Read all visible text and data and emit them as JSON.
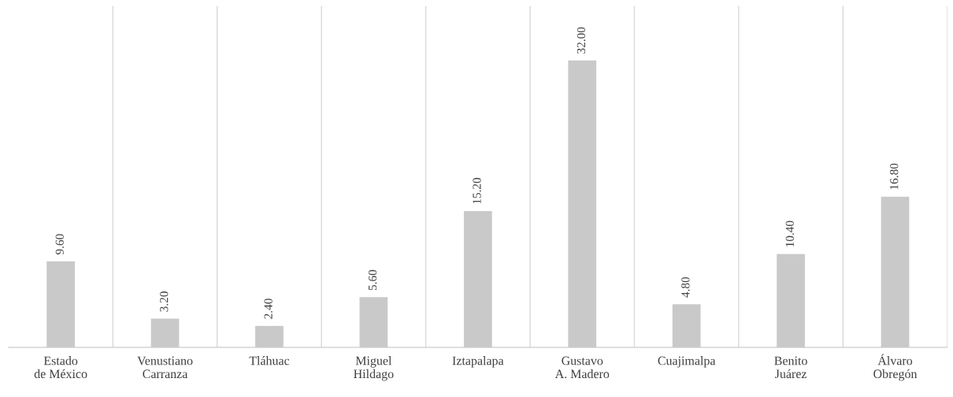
{
  "chart_data": {
    "type": "bar",
    "categories": [
      "Estado\nde México",
      "Venustiano\nCarranza",
      "Tláhuac",
      "Miguel\nHildago",
      "Iztapalapa",
      "Gustavo\nA. Madero",
      "Cuajimalpa",
      "Benito\nJuárez",
      "Álvaro\nObregón"
    ],
    "values": [
      9.6,
      3.2,
      2.4,
      5.6,
      15.2,
      32.0,
      4.8,
      10.4,
      16.8
    ],
    "value_labels": [
      "9.60",
      "3.20",
      "2.40",
      "5.60",
      "15.20",
      "32.00",
      "4.80",
      "10.40",
      "16.80"
    ],
    "color": "#c9c9c9",
    "grid": "x",
    "tick_labels": "x",
    "legend": false
  }
}
